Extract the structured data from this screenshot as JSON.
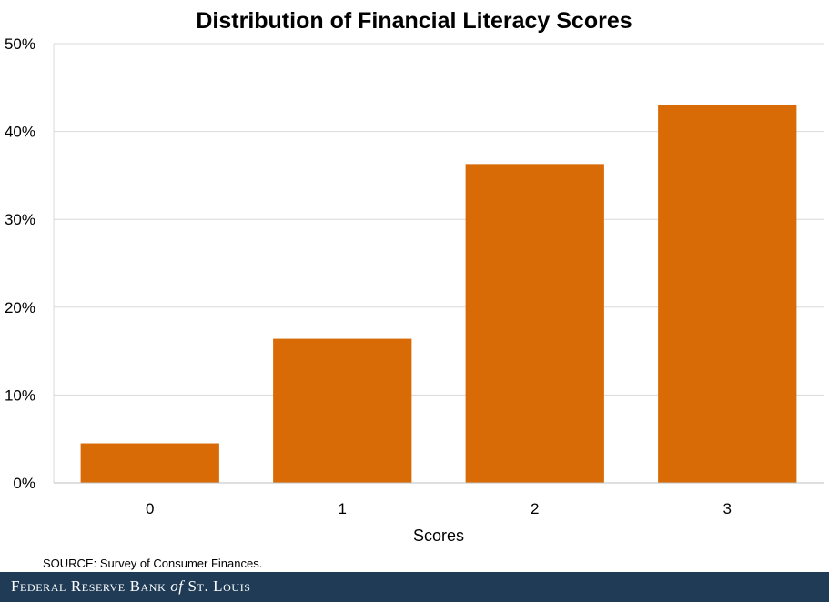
{
  "chart_data": {
    "type": "bar",
    "title": "Distribution of Financial Literacy Scores",
    "xlabel": "Scores",
    "ylabel": "",
    "categories": [
      "0",
      "1",
      "2",
      "3"
    ],
    "values": [
      4.5,
      16.4,
      36.3,
      43.0
    ],
    "ylim": [
      0,
      50
    ],
    "yticks": [
      0,
      10,
      20,
      30,
      40,
      50
    ],
    "ytick_labels": [
      "0%",
      "10%",
      "20%",
      "30%",
      "40%",
      "50%"
    ],
    "grid": true,
    "legend": "none",
    "bar_color": "#d96b07",
    "grid_color": "#d9d9d9"
  },
  "source": "SOURCE: Survey of Consumer Finances.",
  "footer": {
    "name": "Federal Reserve Bank",
    "of": "of",
    "city": "St. Louis",
    "background": "#1f3b56"
  }
}
